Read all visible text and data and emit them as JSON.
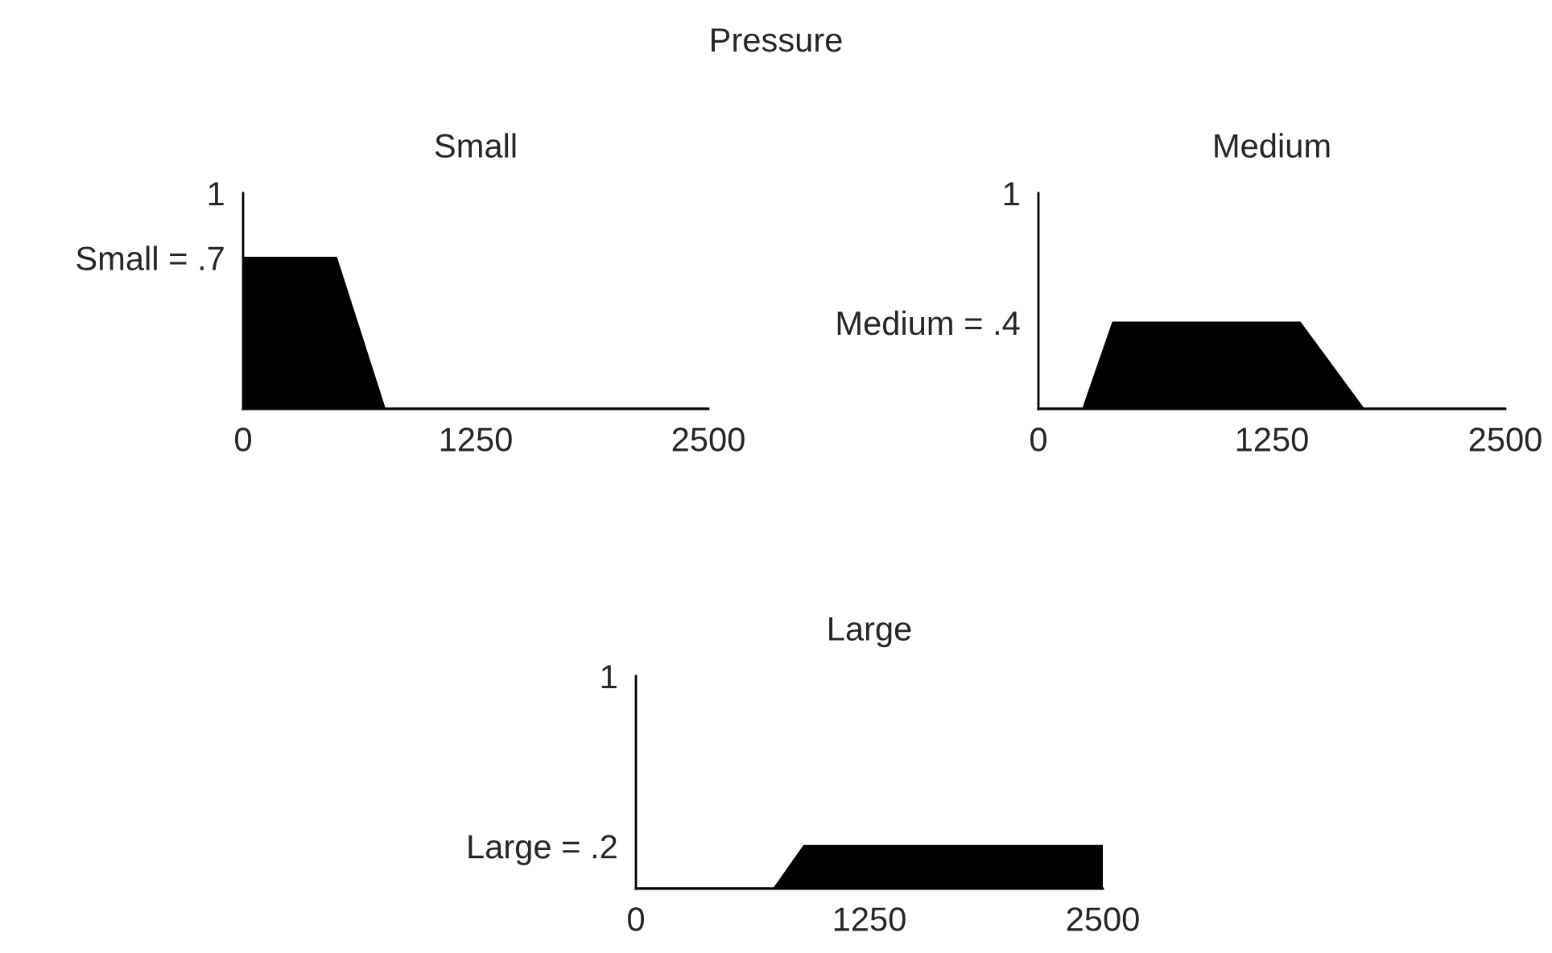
{
  "chart_data": [
    {
      "type": "area",
      "title": "Small",
      "annotations": [
        "Pressure"
      ],
      "x": [
        0,
        500,
        760,
        2500
      ],
      "values": [
        0.7,
        0.7,
        0,
        0
      ],
      "color": "#000000",
      "xlim": [
        0,
        2500
      ],
      "ylim": [
        0,
        1
      ],
      "xticks": [
        0,
        1250,
        2500
      ],
      "yticks": [
        {
          "value": 0.7,
          "label": "Small = .7"
        },
        1
      ],
      "grid": false,
      "legend": false
    },
    {
      "type": "area",
      "title": "Medium",
      "x": [
        0,
        240,
        400,
        1400,
        1740,
        2500
      ],
      "values": [
        0,
        0,
        0.4,
        0.4,
        0,
        0
      ],
      "color": "#000000",
      "xlim": [
        0,
        2500
      ],
      "ylim": [
        0,
        1
      ],
      "xticks": [
        0,
        1250,
        2500
      ],
      "yticks": [
        {
          "value": 0.4,
          "label": "Medium = .4"
        },
        1
      ],
      "grid": false,
      "legend": false
    },
    {
      "type": "area",
      "title": "Large",
      "x": [
        0,
        740,
        900,
        2500
      ],
      "values": [
        0,
        0,
        0.2,
        0.2
      ],
      "color": "#000000",
      "xlim": [
        0,
        2500
      ],
      "ylim": [
        0,
        1
      ],
      "xticks": [
        0,
        1250,
        2500
      ],
      "yticks": [
        {
          "value": 0.2,
          "label": "Large = .2"
        },
        1
      ],
      "grid": false,
      "legend": false
    }
  ]
}
